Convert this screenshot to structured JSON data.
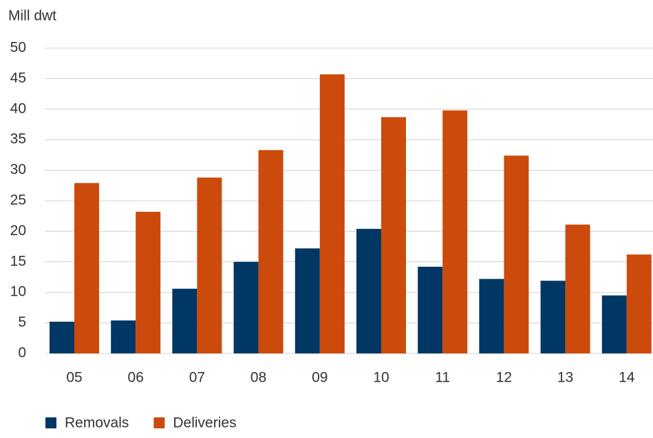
{
  "chart_data": {
    "type": "bar",
    "y_label": "Mill dwt",
    "categories": [
      "05",
      "06",
      "07",
      "08",
      "09",
      "10",
      "11",
      "12",
      "13",
      "14"
    ],
    "series": [
      {
        "name": "Removals",
        "color": "#003764",
        "values": [
          5.2,
          5.4,
          10.6,
          15.0,
          17.2,
          20.4,
          14.2,
          12.2,
          11.9,
          9.5
        ]
      },
      {
        "name": "Deliveries",
        "color": "#cc4a0c",
        "values": [
          27.9,
          23.2,
          28.8,
          33.3,
          45.7,
          38.7,
          39.8,
          32.4,
          21.1,
          16.2
        ]
      }
    ],
    "ylim": [
      0,
      50
    ],
    "yticks": [
      0,
      5,
      10,
      15,
      20,
      25,
      30,
      35,
      40,
      45,
      50
    ],
    "grid": true
  }
}
